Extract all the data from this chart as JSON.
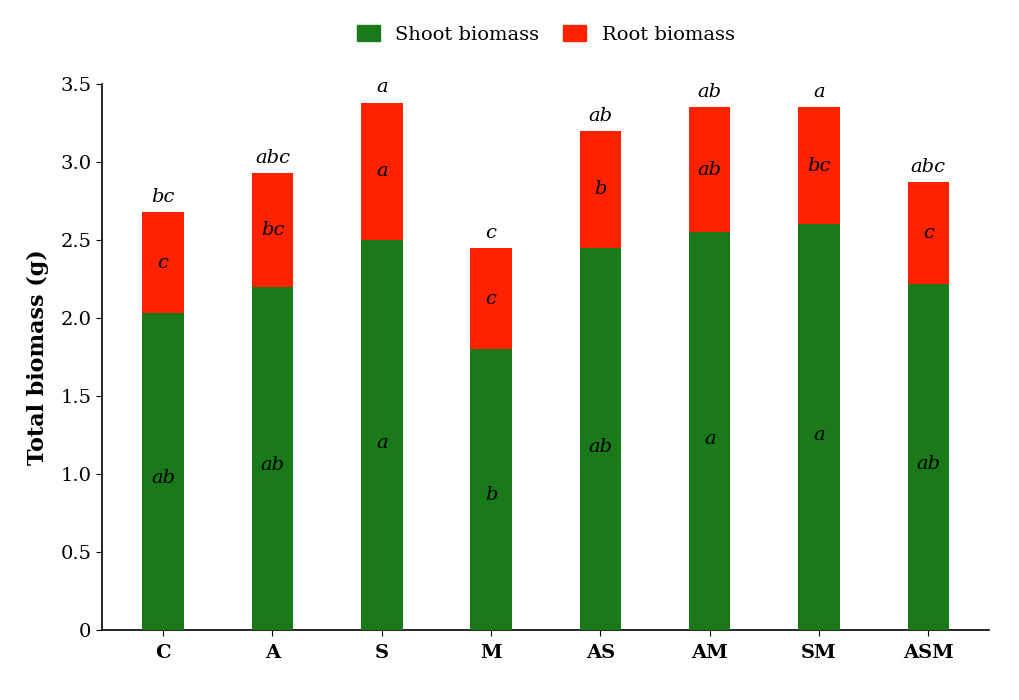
{
  "categories": [
    "C",
    "A",
    "S",
    "M",
    "AS",
    "AM",
    "SM",
    "ASM"
  ],
  "shoot_values": [
    2.03,
    2.2,
    2.5,
    1.8,
    2.45,
    2.55,
    2.6,
    2.22
  ],
  "root_values": [
    0.65,
    0.73,
    0.88,
    0.65,
    0.75,
    0.8,
    0.75,
    0.65
  ],
  "shoot_color": "#1a7a1a",
  "root_color": "#ff2200",
  "shoot_label": "Shoot biomass",
  "root_label": "Root biomass",
  "ylabel": "Total biomass (g)",
  "ylim": [
    0,
    3.5
  ],
  "yticks": [
    0,
    0.5,
    1.0,
    1.5,
    2.0,
    2.5,
    3.0,
    3.5
  ],
  "bar_width": 0.38,
  "shoot_annotations": [
    "ab",
    "ab",
    "a",
    "b",
    "ab",
    "a",
    "a",
    "ab"
  ],
  "root_annotations": [
    "c",
    "bc",
    "a",
    "c",
    "b",
    "ab",
    "bc",
    "c"
  ],
  "total_annotations": [
    "bc",
    "abc",
    "a",
    "c",
    "ab",
    "ab",
    "a",
    "abc"
  ],
  "annotation_fontsize": 14,
  "tick_fontsize": 14,
  "ylabel_fontsize": 16,
  "legend_fontsize": 14
}
